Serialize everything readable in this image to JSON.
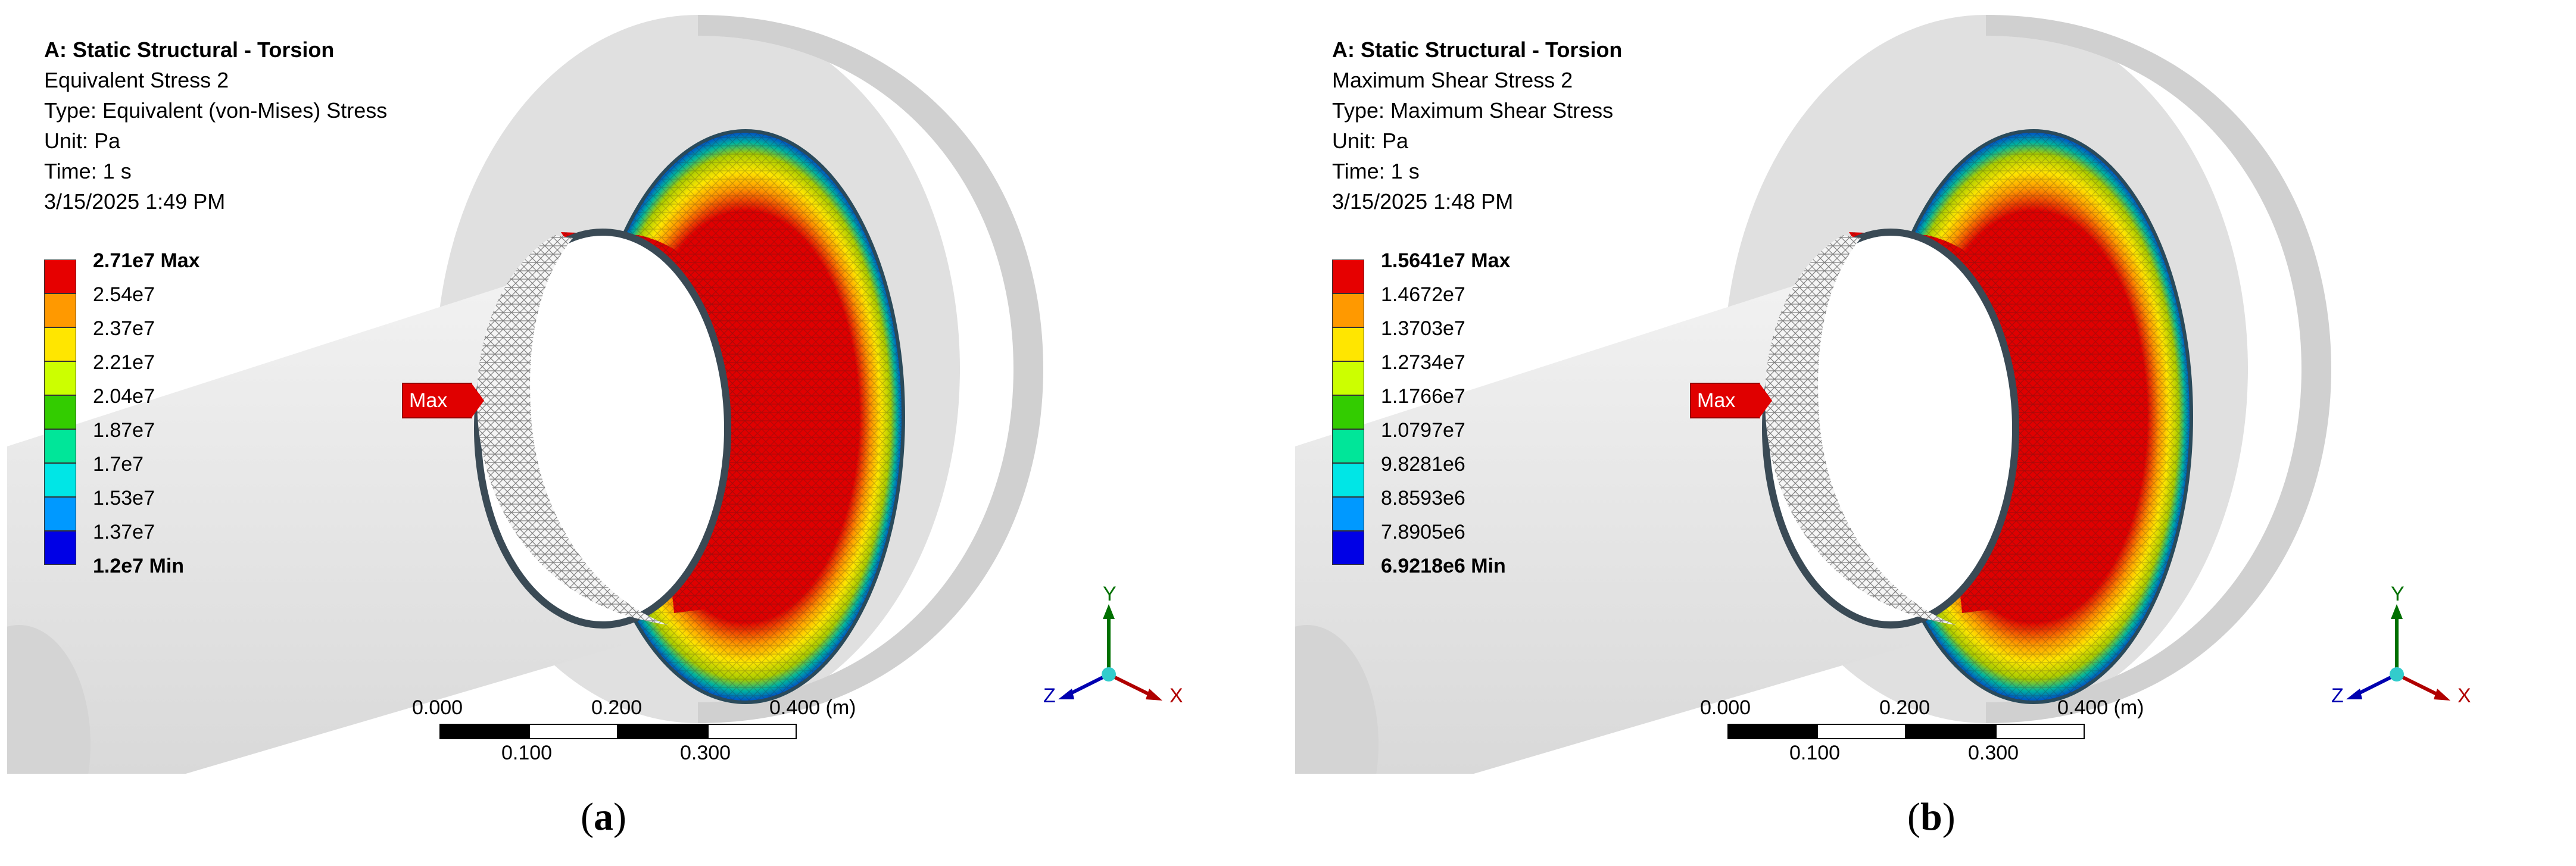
{
  "panels": [
    {
      "id": "a",
      "info": {
        "title": "A: Static Structural - Torsion",
        "result": "Equivalent Stress 2",
        "type": "Type: Equivalent (von-Mises) Stress",
        "unit": "Unit: Pa",
        "time": "Time: 1 s",
        "date": "3/15/2025 1:49 PM"
      },
      "legend": {
        "max_label": "2.71e7 Max",
        "levels": [
          "2.54e7",
          "2.37e7",
          "2.21e7",
          "2.04e7",
          "1.87e7",
          "1.7e7",
          "1.53e7",
          "1.37e7"
        ],
        "min_label": "1.2e7 Min"
      },
      "probe_label": "Max",
      "scale": {
        "top": [
          "0.000",
          "0.200",
          "0.400 (m)"
        ],
        "bottom": [
          "0.100",
          "0.300"
        ]
      },
      "triad": {
        "x": "X",
        "y": "Y",
        "z": "Z"
      },
      "caption": {
        "letter": "a"
      }
    },
    {
      "id": "b",
      "info": {
        "title": "A: Static Structural - Torsion",
        "result": "Maximum Shear Stress 2",
        "type": "Type: Maximum Shear Stress",
        "unit": "Unit: Pa",
        "time": "Time: 1 s",
        "date": "3/15/2025 1:48 PM"
      },
      "legend": {
        "max_label": "1.5641e7 Max",
        "levels": [
          "1.4672e7",
          "1.3703e7",
          "1.2734e7",
          "1.1766e7",
          "1.0797e7",
          "9.8281e6",
          "8.8593e6",
          "7.8905e6"
        ],
        "min_label": "6.9218e6 Min"
      },
      "probe_label": "Max",
      "scale": {
        "top": [
          "0.000",
          "0.200",
          "0.400 (m)"
        ],
        "bottom": [
          "0.100",
          "0.300"
        ]
      },
      "triad": {
        "x": "X",
        "y": "Y",
        "z": "Z"
      },
      "caption": {
        "letter": "b"
      }
    }
  ],
  "legend_colors": [
    "#e60000",
    "#ff9900",
    "#ffe600",
    "#ccff00",
    "#33cc00",
    "#00e699",
    "#00e6e6",
    "#0099ff",
    "#0000e6"
  ],
  "axis_colors": {
    "x": "#b00000",
    "y": "#007000",
    "z": "#0000b0"
  }
}
